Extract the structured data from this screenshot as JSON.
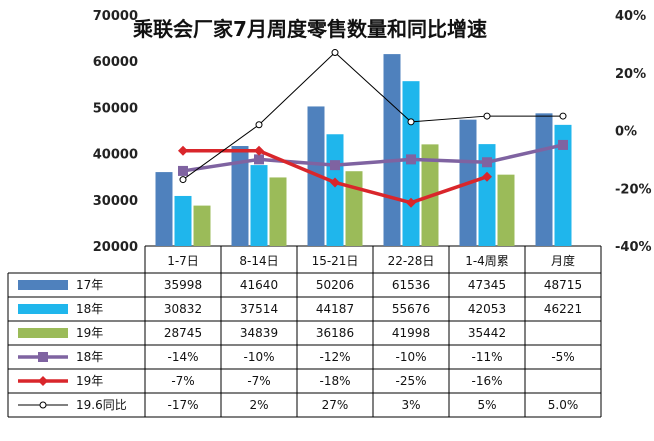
{
  "chart_data": {
    "type": "bar",
    "title": "乘联会厂家7月周度零售数量和同比增速",
    "categories": [
      "1-7日",
      "8-14日",
      "15-21日",
      "22-28日",
      "1-4周累",
      "月度"
    ],
    "y_left_ticks": [
      "70000",
      "60000",
      "50000",
      "40000",
      "30000",
      "20000"
    ],
    "y_right_ticks": [
      "40%",
      "20%",
      "0%",
      "-20%",
      "-40%"
    ],
    "ylim_left": [
      20000,
      70000
    ],
    "ylim_right": [
      -40,
      40
    ],
    "bar_series": [
      {
        "name": "17年",
        "color": "#4F81BD",
        "values": [
          35998,
          41640,
          50206,
          61536,
          47345,
          48715
        ],
        "labels": [
          "35998",
          "41640",
          "50206",
          "61536",
          "47345",
          "48715"
        ]
      },
      {
        "name": "18年",
        "color": "#1FB6EC",
        "values": [
          30832,
          37514,
          44187,
          55676,
          42053,
          46221
        ],
        "labels": [
          "30832",
          "37514",
          "44187",
          "55676",
          "42053",
          "46221"
        ]
      },
      {
        "name": "19年",
        "color": "#9BBB59",
        "values": [
          28745,
          34839,
          36186,
          41998,
          35442,
          null
        ],
        "labels": [
          "28745",
          "34839",
          "36186",
          "41998",
          "35442",
          ""
        ]
      }
    ],
    "line_series": [
      {
        "name": "18年",
        "color": "#7F63A1",
        "marker": "square",
        "values": [
          -14,
          -10,
          -12,
          -10,
          -11,
          -5
        ],
        "labels": [
          "-14%",
          "-10%",
          "-12%",
          "-10%",
          "-11%",
          "-5%"
        ]
      },
      {
        "name": "19年",
        "color": "#D9262B",
        "marker": "diamond",
        "values": [
          -7,
          -7,
          -18,
          -25,
          -16,
          null
        ],
        "labels": [
          "-7%",
          "-7%",
          "-18%",
          "-25%",
          "-16%",
          ""
        ]
      },
      {
        "name": "19.6同比",
        "color": "#000000",
        "marker": "circle",
        "values": [
          -17,
          2,
          27,
          3,
          5,
          5
        ],
        "labels": [
          "-17%",
          "2%",
          "27%",
          "3%",
          "5%",
          "5.0%"
        ]
      }
    ]
  }
}
